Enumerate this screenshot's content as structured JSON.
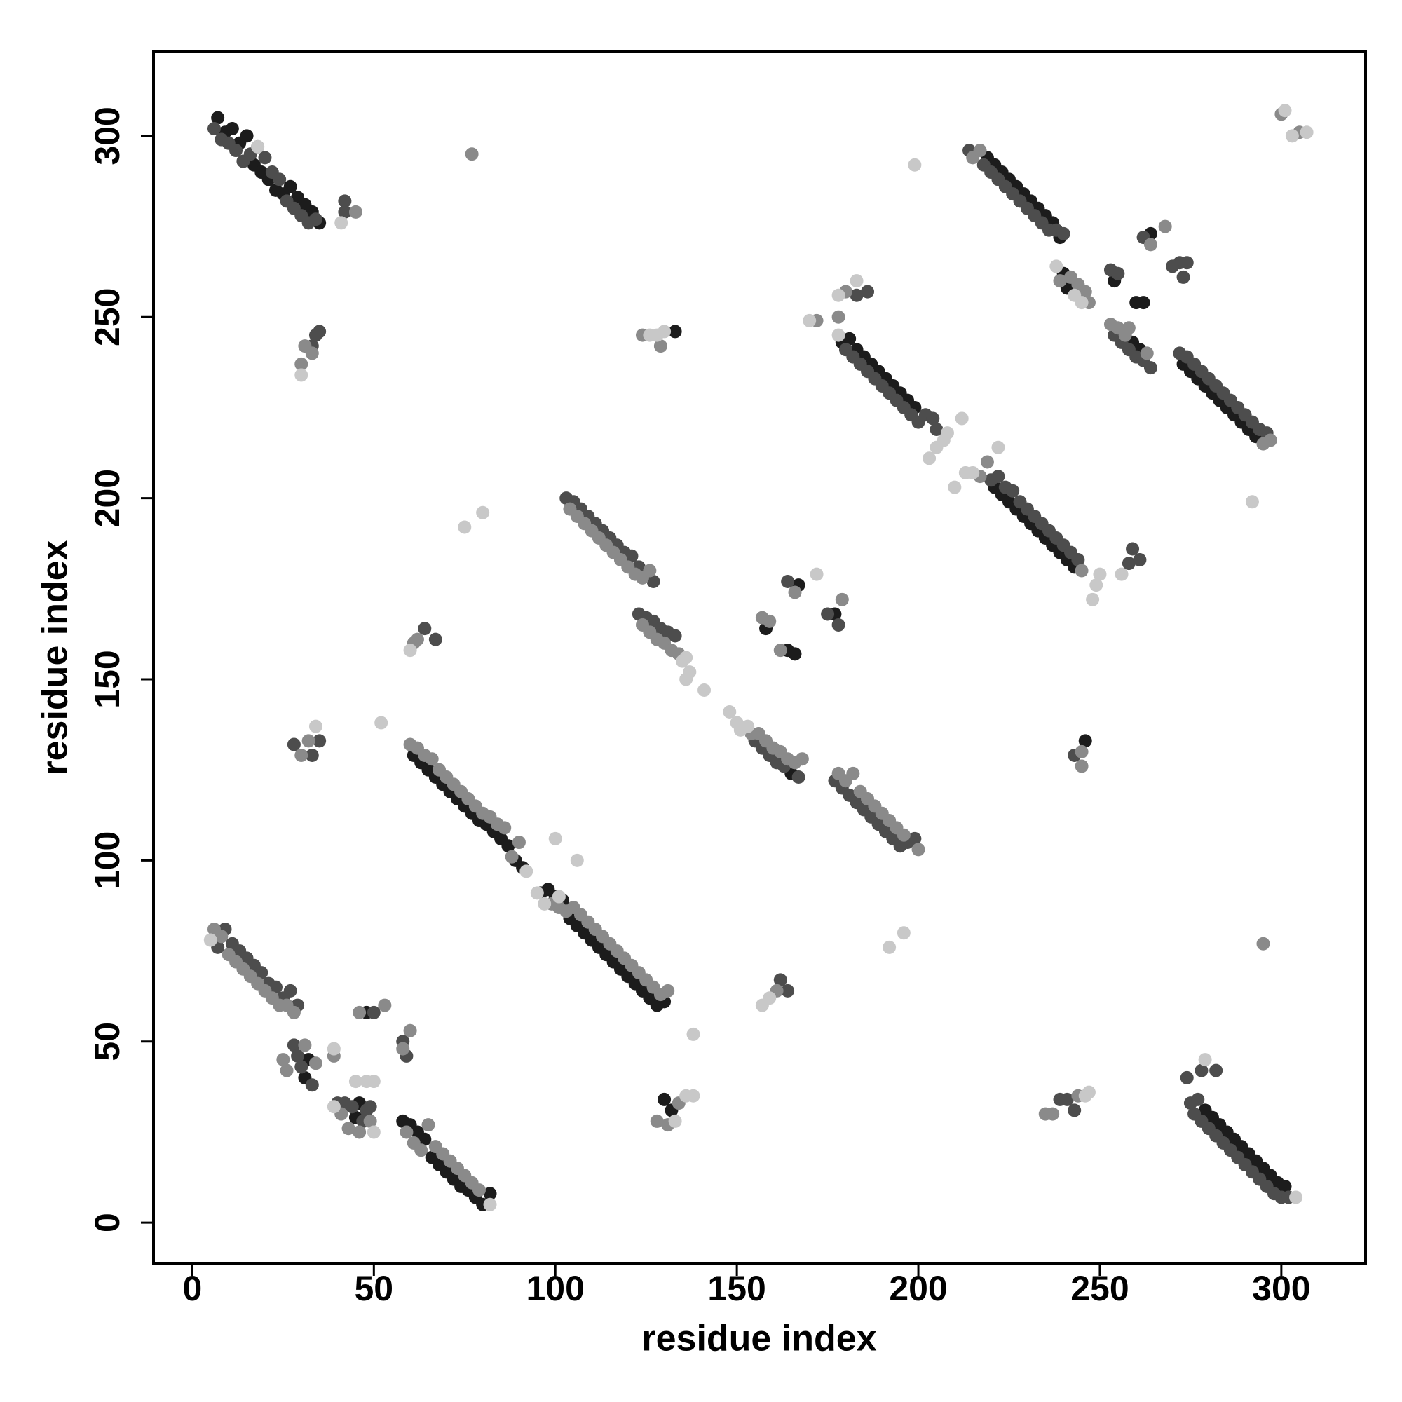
{
  "chart_data": {
    "type": "scatter",
    "xlabel": "residue index",
    "ylabel": "residue index",
    "xlim": [
      -10.7,
      323.2
    ],
    "ylim": [
      -11.2,
      323.2
    ],
    "xticks": [
      0,
      50,
      100,
      150,
      200,
      250,
      300
    ],
    "yticks": [
      0,
      50,
      100,
      150,
      200,
      250,
      300
    ],
    "series": [
      {
        "color": "#1c1c1c",
        "x": [
          7,
          9,
          11,
          13,
          15,
          17,
          19,
          21,
          23,
          25,
          27,
          29,
          31,
          33,
          35,
          58,
          60,
          62,
          64,
          66,
          68,
          70,
          72,
          74,
          76,
          78,
          80,
          82,
          61,
          63,
          65,
          67,
          69,
          71,
          73,
          75,
          77,
          79,
          81,
          83,
          85,
          87,
          89,
          91,
          96,
          98,
          100,
          102,
          104,
          106,
          108,
          110,
          112,
          114,
          116,
          118,
          120,
          122,
          124,
          126,
          128,
          130,
          32,
          31,
          45,
          46,
          48,
          132,
          130,
          133,
          164,
          166,
          167,
          177,
          158,
          179,
          181,
          183,
          185,
          187,
          189,
          191,
          193,
          195,
          197,
          199,
          221,
          223,
          225,
          227,
          229,
          231,
          233,
          235,
          237,
          239,
          241,
          243,
          219,
          221,
          223,
          225,
          227,
          229,
          231,
          233,
          235,
          237,
          239,
          240,
          241,
          254,
          260,
          262,
          264,
          259,
          261,
          273,
          275,
          277,
          279,
          281,
          283,
          285,
          287,
          289,
          291,
          293,
          279,
          281,
          283,
          285,
          287,
          289,
          291,
          293,
          295,
          297,
          299,
          301,
          246,
          165
        ],
        "values": [
          305,
          301,
          302,
          298,
          300,
          292,
          290,
          288,
          285,
          284,
          286,
          283,
          281,
          279,
          276,
          28,
          27,
          25,
          23,
          18,
          16,
          14,
          12,
          10,
          9,
          7,
          5,
          8,
          129,
          127,
          125,
          123,
          121,
          119,
          117,
          115,
          113,
          111,
          110,
          108,
          106,
          104,
          100,
          98,
          91,
          92,
          90,
          89,
          84,
          82,
          80,
          78,
          76,
          74,
          72,
          70,
          68,
          66,
          64,
          62,
          60,
          61,
          45,
          40,
          29,
          33,
          58,
          31,
          34,
          246,
          158,
          157,
          176,
          168,
          164,
          243,
          244,
          241,
          239,
          237,
          235,
          233,
          231,
          229,
          227,
          225,
          203,
          201,
          199,
          197,
          195,
          193,
          191,
          189,
          187,
          185,
          183,
          181,
          294,
          292,
          290,
          288,
          286,
          284,
          282,
          280,
          278,
          276,
          272,
          262,
          258,
          260,
          254,
          254,
          273,
          243,
          241,
          237,
          235,
          233,
          231,
          229,
          227,
          225,
          223,
          221,
          219,
          217,
          31,
          29,
          27,
          25,
          23,
          21,
          19,
          17,
          15,
          13,
          11,
          10,
          133,
          124
        ]
      },
      {
        "color": "#4d4d4d",
        "x": [
          6,
          8,
          10,
          12,
          14,
          16,
          18,
          20,
          22,
          24,
          26,
          28,
          30,
          32,
          34,
          42,
          42,
          35,
          33,
          34,
          7,
          9,
          11,
          13,
          15,
          17,
          19,
          21,
          23,
          25,
          27,
          29,
          28,
          29,
          33,
          30,
          40,
          42,
          44,
          47,
          48,
          49,
          50,
          58,
          59,
          28,
          33,
          35,
          64,
          67,
          103,
          105,
          107,
          109,
          111,
          113,
          115,
          117,
          119,
          121,
          123,
          127,
          123,
          125,
          127,
          129,
          131,
          133,
          155,
          157,
          159,
          161,
          163,
          167,
          177,
          179,
          181,
          183,
          185,
          187,
          189,
          191,
          193,
          195,
          197,
          199,
          162,
          164,
          175,
          178,
          164,
          183,
          186,
          180,
          182,
          184,
          186,
          188,
          190,
          192,
          194,
          196,
          198,
          200,
          202,
          204,
          205,
          220,
          222,
          224,
          226,
          228,
          230,
          232,
          234,
          236,
          238,
          240,
          242,
          244,
          258,
          259,
          261,
          214,
          218,
          220,
          222,
          224,
          226,
          228,
          230,
          232,
          234,
          236,
          238,
          240,
          253,
          255,
          262,
          272,
          274,
          273,
          270,
          254,
          256,
          258,
          260,
          262,
          264,
          272,
          274,
          276,
          278,
          280,
          282,
          284,
          286,
          288,
          290,
          292,
          294,
          296,
          276,
          278,
          280,
          282,
          284,
          286,
          288,
          290,
          292,
          294,
          296,
          298,
          300,
          302,
          278,
          282,
          274,
          275,
          277,
          243,
          239,
          241,
          243
        ],
        "values": [
          302,
          299,
          298,
          296,
          293,
          295,
          297,
          294,
          290,
          288,
          282,
          280,
          278,
          276,
          277,
          282,
          279,
          246,
          242,
          245,
          76,
          81,
          77,
          75,
          73,
          71,
          69,
          66,
          65,
          62,
          64,
          60,
          49,
          46,
          38,
          43,
          33,
          33,
          32,
          28,
          31,
          32,
          58,
          50,
          46,
          132,
          129,
          133,
          164,
          161,
          200,
          199,
          197,
          195,
          193,
          191,
          189,
          187,
          185,
          184,
          181,
          177,
          168,
          167,
          166,
          164,
          163,
          162,
          133,
          131,
          129,
          127,
          126,
          123,
          122,
          120,
          118,
          116,
          114,
          112,
          110,
          108,
          106,
          104,
          105,
          106,
          67,
          64,
          168,
          165,
          177,
          256,
          257,
          241,
          239,
          237,
          235,
          233,
          231,
          229,
          227,
          225,
          223,
          221,
          223,
          222,
          219,
          205,
          206,
          203,
          202,
          199,
          197,
          195,
          193,
          191,
          189,
          187,
          185,
          183,
          182,
          186,
          183,
          296,
          292,
          290,
          288,
          286,
          284,
          282,
          280,
          278,
          276,
          274,
          274,
          273,
          263,
          262,
          272,
          265,
          265,
          261,
          264,
          245,
          243,
          241,
          239,
          238,
          236,
          240,
          239,
          237,
          235,
          233,
          231,
          229,
          227,
          225,
          223,
          221,
          219,
          218,
          30,
          28,
          26,
          24,
          22,
          20,
          18,
          16,
          14,
          12,
          10,
          8,
          7,
          7,
          42,
          42,
          40,
          33,
          34,
          31,
          34,
          34,
          129
        ]
      },
      {
        "color": "#8a8a8a",
        "x": [
          45,
          30,
          31,
          33,
          77,
          6,
          8,
          10,
          12,
          14,
          16,
          18,
          20,
          22,
          24,
          26,
          28,
          25,
          26,
          31,
          34,
          39,
          41,
          43,
          46,
          49,
          46,
          53,
          58,
          60,
          59,
          61,
          63,
          65,
          67,
          69,
          71,
          73,
          75,
          77,
          79,
          30,
          32,
          62,
          61,
          60,
          62,
          64,
          66,
          68,
          70,
          72,
          74,
          76,
          78,
          80,
          82,
          84,
          86,
          88,
          90,
          99,
          101,
          103,
          105,
          107,
          109,
          111,
          113,
          115,
          117,
          119,
          121,
          123,
          125,
          127,
          129,
          131,
          128,
          131,
          134,
          124,
          129,
          104,
          106,
          108,
          110,
          112,
          114,
          116,
          118,
          120,
          122,
          124,
          126,
          124,
          126,
          128,
          130,
          132,
          134,
          154,
          156,
          158,
          160,
          162,
          164,
          166,
          168,
          178,
          180,
          182,
          184,
          186,
          188,
          190,
          192,
          194,
          196,
          200,
          157,
          159,
          162,
          166,
          179,
          161,
          172,
          178,
          180,
          245,
          217,
          219,
          215,
          217,
          239,
          242,
          244,
          246,
          247,
          258,
          264,
          268,
          253,
          255,
          257,
          263,
          295,
          297,
          235,
          237,
          244,
          245,
          245,
          295,
          300,
          305
        ],
        "values": [
          279,
          237,
          242,
          240,
          295,
          81,
          79,
          74,
          72,
          70,
          68,
          66,
          64,
          62,
          60,
          60,
          58,
          45,
          42,
          49,
          44,
          46,
          30,
          26,
          25,
          28,
          58,
          60,
          48,
          53,
          25,
          22,
          20,
          27,
          21,
          19,
          17,
          15,
          13,
          11,
          9,
          129,
          133,
          161,
          160,
          132,
          131,
          129,
          128,
          125,
          123,
          121,
          119,
          117,
          115,
          113,
          112,
          110,
          109,
          101,
          105,
          88,
          87,
          86,
          87,
          85,
          83,
          81,
          79,
          77,
          75,
          73,
          71,
          69,
          67,
          65,
          63,
          64,
          28,
          27,
          33,
          245,
          242,
          197,
          195,
          193,
          191,
          189,
          187,
          185,
          183,
          181,
          179,
          178,
          180,
          165,
          163,
          161,
          160,
          158,
          157,
          135,
          135,
          133,
          131,
          130,
          128,
          127,
          128,
          124,
          122,
          124,
          119,
          117,
          115,
          113,
          111,
          109,
          107,
          103,
          167,
          166,
          158,
          174,
          172,
          64,
          249,
          250,
          257,
          180,
          206,
          210,
          294,
          296,
          260,
          261,
          259,
          257,
          254,
          247,
          270,
          275,
          248,
          247,
          245,
          240,
          215,
          216,
          30,
          30,
          35,
          126,
          130,
          77,
          306,
          301
        ]
      },
      {
        "color": "#c8c8c8",
        "x": [
          41,
          30,
          5,
          39,
          39,
          48,
          45,
          50,
          50,
          82,
          52,
          34,
          60,
          75,
          80,
          100,
          106,
          92,
          95,
          97,
          101,
          138,
          136,
          138,
          133,
          126,
          128,
          130,
          135,
          136,
          137,
          136,
          141,
          148,
          150,
          151,
          153,
          157,
          159,
          192,
          196,
          170,
          178,
          183,
          178,
          203,
          205,
          207,
          208,
          210,
          212,
          213,
          215,
          222,
          248,
          249,
          250,
          256,
          199,
          238,
          243,
          245,
          292,
          246,
          247,
          279,
          304,
          301,
          303,
          307,
          172,
          18
        ],
        "values": [
          276,
          234,
          78,
          48,
          32,
          39,
          39,
          39,
          25,
          5,
          138,
          137,
          158,
          192,
          196,
          106,
          100,
          97,
          91,
          88,
          90,
          52,
          35,
          35,
          28,
          245,
          245,
          246,
          155,
          156,
          152,
          150,
          147,
          141,
          138,
          136,
          137,
          60,
          62,
          76,
          80,
          249,
          256,
          260,
          245,
          211,
          214,
          216,
          218,
          203,
          222,
          207,
          207,
          214,
          172,
          176,
          179,
          179,
          292,
          264,
          256,
          254,
          199,
          35,
          36,
          45,
          7,
          307,
          300,
          301,
          179,
          297
        ]
      }
    ]
  }
}
